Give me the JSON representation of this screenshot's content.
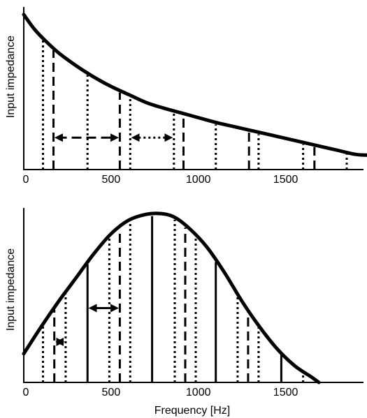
{
  "chart_data": [
    {
      "type": "line",
      "ylabel": "Input impedance",
      "xlabel": "",
      "xlim": [
        0,
        1970
      ],
      "ylim": [
        0,
        1
      ],
      "x_ticks": [
        0,
        500,
        1000,
        1500
      ],
      "x_tick_labels": [
        "0",
        "500",
        "1000",
        "1500"
      ],
      "curve": {
        "x": [
          0,
          60,
          120,
          200,
          300,
          400,
          500,
          600,
          700,
          800,
          900,
          1000,
          1100,
          1200,
          1300,
          1400,
          1500,
          1600,
          1700,
          1800,
          1900,
          1970
        ],
        "y": [
          0.97,
          0.88,
          0.81,
          0.73,
          0.65,
          0.58,
          0.52,
          0.47,
          0.42,
          0.385,
          0.355,
          0.325,
          0.295,
          0.27,
          0.245,
          0.22,
          0.195,
          0.17,
          0.145,
          0.12,
          0.095,
          0.09
        ]
      },
      "markers": [
        {
          "x": 110,
          "style": "dotted"
        },
        {
          "x": 170,
          "style": "dashed"
        },
        {
          "x": 365,
          "style": "dotted"
        },
        {
          "x": 550,
          "style": "dashed"
        },
        {
          "x": 610,
          "style": "dotted"
        },
        {
          "x": 860,
          "style": "dotted"
        },
        {
          "x": 915,
          "style": "dashed"
        },
        {
          "x": 1100,
          "style": "dotted"
        },
        {
          "x": 1290,
          "style": "dashed"
        },
        {
          "x": 1345,
          "style": "dotted"
        },
        {
          "x": 1600,
          "style": "dotted"
        },
        {
          "x": 1665,
          "style": "dashed"
        },
        {
          "x": 1850,
          "style": "dotted"
        }
      ],
      "arrows": [
        {
          "x1": 170,
          "x2": 550,
          "y": 0.2,
          "style": "dashed"
        },
        {
          "x1": 610,
          "x2": 860,
          "y": 0.2,
          "style": "dotted"
        }
      ]
    },
    {
      "type": "line",
      "ylabel": "Input impedance",
      "xlabel": "Frequency [Hz]",
      "xlim": [
        0,
        1970
      ],
      "ylim": [
        0,
        1
      ],
      "x_ticks": [
        0,
        500,
        1000,
        1500
      ],
      "x_tick_labels": [
        "0",
        "500",
        "1000",
        "1500"
      ],
      "curve": {
        "x": [
          0,
          100,
          200,
          300,
          400,
          500,
          600,
          700,
          780,
          860,
          950,
          1050,
          1150,
          1250,
          1350,
          1450,
          1550,
          1650,
          1690
        ],
        "y": [
          0.17,
          0.33,
          0.48,
          0.62,
          0.76,
          0.88,
          0.96,
          0.995,
          1.0,
          0.98,
          0.91,
          0.8,
          0.65,
          0.48,
          0.33,
          0.2,
          0.1,
          0.03,
          0.0
        ]
      },
      "markers": [
        {
          "x": 110,
          "style": "dotted"
        },
        {
          "x": 175,
          "style": "dashed"
        },
        {
          "x": 240,
          "style": "dotted"
        },
        {
          "x": 365,
          "style": "solid"
        },
        {
          "x": 490,
          "style": "dotted"
        },
        {
          "x": 550,
          "style": "dashed"
        },
        {
          "x": 610,
          "style": "dotted"
        },
        {
          "x": 735,
          "style": "solid"
        },
        {
          "x": 865,
          "style": "dotted"
        },
        {
          "x": 925,
          "style": "dashed"
        },
        {
          "x": 985,
          "style": "dotted"
        },
        {
          "x": 1100,
          "style": "solid"
        },
        {
          "x": 1225,
          "style": "dotted"
        },
        {
          "x": 1285,
          "style": "dashed"
        },
        {
          "x": 1345,
          "style": "dotted"
        },
        {
          "x": 1475,
          "style": "solid"
        },
        {
          "x": 1600,
          "style": "dotted"
        }
      ],
      "arrows": [
        {
          "x1": 365,
          "x2": 550,
          "y": 0.44,
          "style": "solid"
        },
        {
          "x1": 240,
          "x2": 175,
          "y": 0.24,
          "style": "dotted"
        }
      ]
    }
  ]
}
